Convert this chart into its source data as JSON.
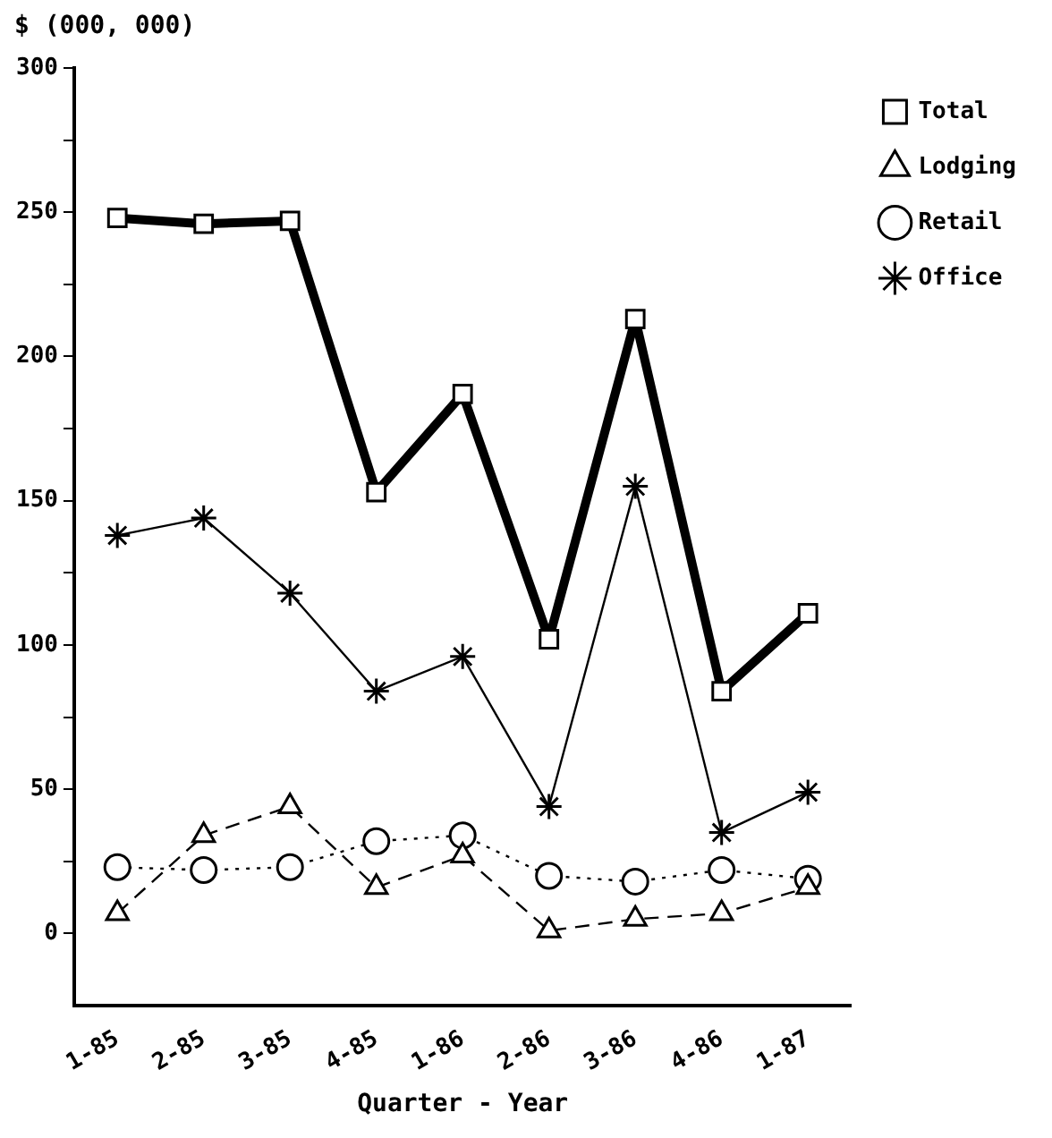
{
  "chart_data": {
    "type": "line",
    "ylabel": "$ (000, 000)",
    "xlabel": "Quarter - Year",
    "categories": [
      "1-85",
      "2-85",
      "3-85",
      "4-85",
      "1-86",
      "2-86",
      "3-86",
      "4-86",
      "1-87"
    ],
    "ylim": [
      -25,
      300
    ],
    "yticks": [
      0,
      {
        "value": 25,
        "label": null
      },
      50,
      {
        "value": 75,
        "label": null
      },
      100,
      {
        "value": 125,
        "label": null
      },
      150,
      {
        "value": 175,
        "label": null
      },
      200,
      {
        "value": 225,
        "label": null
      },
      250,
      {
        "value": 275,
        "label": null
      },
      300
    ],
    "grid": false,
    "legend": "top right",
    "series": [
      {
        "name": "Total",
        "color": "#000000",
        "marker": "square",
        "line_style": "solid",
        "values": [
          248,
          246,
          247,
          153,
          187,
          102,
          213,
          84,
          111
        ]
      },
      {
        "name": "Lodging",
        "color": "#000000",
        "marker": "triangle",
        "line_style": "dashed",
        "values": [
          7,
          34,
          44,
          16,
          27,
          1,
          5,
          7,
          16
        ]
      },
      {
        "name": "Retail",
        "color": "#000000",
        "marker": "circle",
        "line_style": "dotted",
        "values": [
          23,
          22,
          23,
          32,
          34,
          20,
          18,
          22,
          19
        ]
      },
      {
        "name": "Office",
        "color": "#000000",
        "marker": "cross",
        "line_style": "solid",
        "values": [
          138,
          144,
          118,
          84,
          96,
          44,
          155,
          35,
          49
        ]
      }
    ]
  }
}
